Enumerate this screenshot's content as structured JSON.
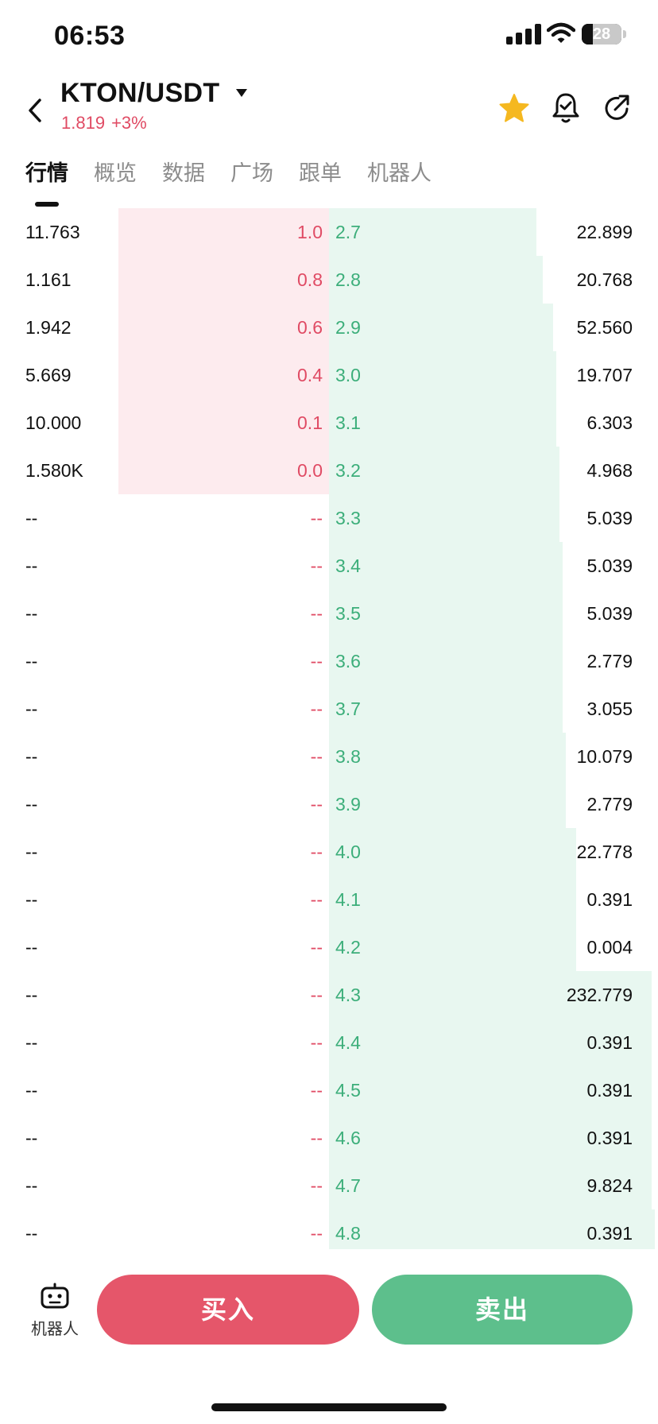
{
  "status_bar": {
    "time": "06:53",
    "battery": "28",
    "battery_fraction": 0.28
  },
  "header": {
    "pair": "KTON/USDT",
    "price": "1.819",
    "change": "+3%",
    "favorite": true
  },
  "tabs": [
    {
      "label": "行情",
      "active": true
    },
    {
      "label": "概览",
      "active": false
    },
    {
      "label": "数据",
      "active": false
    },
    {
      "label": "广场",
      "active": false
    },
    {
      "label": "跟单",
      "active": false
    },
    {
      "label": "机器人",
      "active": false
    }
  ],
  "colors": {
    "bid": "#e04b64",
    "ask": "#3cae7a",
    "bid_bg": "#fdebee",
    "ask_bg": "#e8f7f0",
    "buy": "#e5566a",
    "sell": "#5dbf8c",
    "star": "#f5b820"
  },
  "order_book": {
    "rows": [
      {
        "bid_qty": "11.763",
        "bid_price": "1.0",
        "ask_price": "2.7",
        "ask_qty": "22.899",
        "bid_depth": 0.64,
        "ask_depth": 0.63
      },
      {
        "bid_qty": "1.161",
        "bid_price": "0.8",
        "ask_price": "2.8",
        "ask_qty": "20.768",
        "bid_depth": 0.64,
        "ask_depth": 0.65
      },
      {
        "bid_qty": "1.942",
        "bid_price": "0.6",
        "ask_price": "2.9",
        "ask_qty": "52.560",
        "bid_depth": 0.64,
        "ask_depth": 0.68
      },
      {
        "bid_qty": "5.669",
        "bid_price": "0.4",
        "ask_price": "3.0",
        "ask_qty": "19.707",
        "bid_depth": 0.64,
        "ask_depth": 0.69
      },
      {
        "bid_qty": "10.000",
        "bid_price": "0.1",
        "ask_price": "3.1",
        "ask_qty": "6.303",
        "bid_depth": 0.64,
        "ask_depth": 0.69
      },
      {
        "bid_qty": "1.580K",
        "bid_price": "0.0",
        "ask_price": "3.2",
        "ask_qty": "4.968",
        "bid_depth": 0.64,
        "ask_depth": 0.7
      },
      {
        "bid_qty": "--",
        "bid_price": "--",
        "ask_price": "3.3",
        "ask_qty": "5.039",
        "bid_depth": 0,
        "ask_depth": 0.7
      },
      {
        "bid_qty": "--",
        "bid_price": "--",
        "ask_price": "3.4",
        "ask_qty": "5.039",
        "bid_depth": 0,
        "ask_depth": 0.71
      },
      {
        "bid_qty": "--",
        "bid_price": "--",
        "ask_price": "3.5",
        "ask_qty": "5.039",
        "bid_depth": 0,
        "ask_depth": 0.71
      },
      {
        "bid_qty": "--",
        "bid_price": "--",
        "ask_price": "3.6",
        "ask_qty": "2.779",
        "bid_depth": 0,
        "ask_depth": 0.71
      },
      {
        "bid_qty": "--",
        "bid_price": "--",
        "ask_price": "3.7",
        "ask_qty": "3.055",
        "bid_depth": 0,
        "ask_depth": 0.71
      },
      {
        "bid_qty": "--",
        "bid_price": "--",
        "ask_price": "3.8",
        "ask_qty": "10.079",
        "bid_depth": 0,
        "ask_depth": 0.72
      },
      {
        "bid_qty": "--",
        "bid_price": "--",
        "ask_price": "3.9",
        "ask_qty": "2.779",
        "bid_depth": 0,
        "ask_depth": 0.72
      },
      {
        "bid_qty": "--",
        "bid_price": "--",
        "ask_price": "4.0",
        "ask_qty": "22.778",
        "bid_depth": 0,
        "ask_depth": 0.75
      },
      {
        "bid_qty": "--",
        "bid_price": "--",
        "ask_price": "4.1",
        "ask_qty": "0.391",
        "bid_depth": 0,
        "ask_depth": 0.75
      },
      {
        "bid_qty": "--",
        "bid_price": "--",
        "ask_price": "4.2",
        "ask_qty": "0.004",
        "bid_depth": 0,
        "ask_depth": 0.75
      },
      {
        "bid_qty": "--",
        "bid_price": "--",
        "ask_price": "4.3",
        "ask_qty": "232.779",
        "bid_depth": 0,
        "ask_depth": 0.98
      },
      {
        "bid_qty": "--",
        "bid_price": "--",
        "ask_price": "4.4",
        "ask_qty": "0.391",
        "bid_depth": 0,
        "ask_depth": 0.98
      },
      {
        "bid_qty": "--",
        "bid_price": "--",
        "ask_price": "4.5",
        "ask_qty": "0.391",
        "bid_depth": 0,
        "ask_depth": 0.98
      },
      {
        "bid_qty": "--",
        "bid_price": "--",
        "ask_price": "4.6",
        "ask_qty": "0.391",
        "bid_depth": 0,
        "ask_depth": 0.98
      },
      {
        "bid_qty": "--",
        "bid_price": "--",
        "ask_price": "4.7",
        "ask_qty": "9.824",
        "bid_depth": 0,
        "ask_depth": 0.98
      },
      {
        "bid_qty": "--",
        "bid_price": "--",
        "ask_price": "4.8",
        "ask_qty": "0.391",
        "bid_depth": 0,
        "ask_depth": 0.99
      }
    ]
  },
  "bottom_bar": {
    "robot_label": "机器人",
    "buy_label": "买入",
    "sell_label": "卖出"
  }
}
